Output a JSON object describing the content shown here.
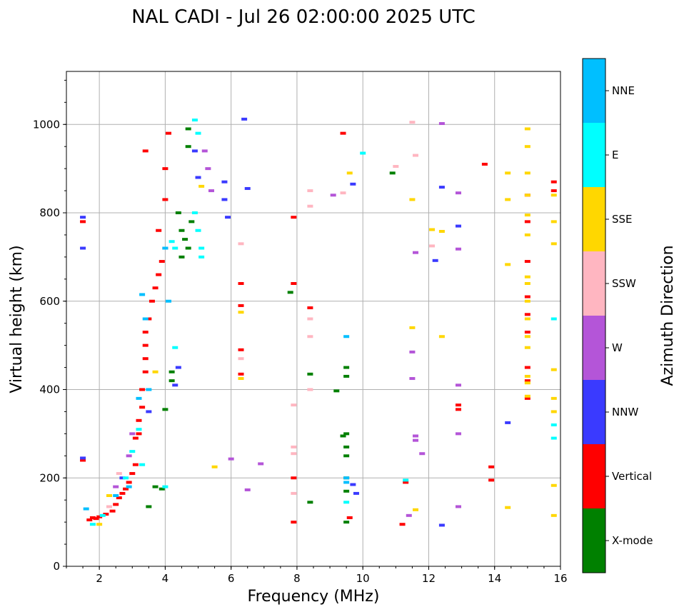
{
  "chart_data": {
    "type": "scatter",
    "title": "NAL CADI - Jul 26 02:00:00 2025 UTC",
    "xlabel": "Frequency (MHz)",
    "ylabel": "Virtual height (km)",
    "xlim": [
      1,
      16
    ],
    "ylim": [
      0,
      1120
    ],
    "xticks": [
      2,
      4,
      6,
      8,
      10,
      12,
      14,
      16
    ],
    "yticks": [
      0,
      200,
      400,
      600,
      800,
      1000
    ],
    "grid": true,
    "colorbar": {
      "title": "Azimuth Direction",
      "categories": [
        {
          "name": "X-mode",
          "color": "#008000"
        },
        {
          "name": "Vertical",
          "color": "#ff0000"
        },
        {
          "name": "NNW",
          "color": "#3a3aff"
        },
        {
          "name": "W",
          "color": "#b455d8"
        },
        {
          "name": "SSW",
          "color": "#ffb6c1"
        },
        {
          "name": "SSE",
          "color": "#ffd700"
        },
        {
          "name": "E",
          "color": "#00ffff"
        },
        {
          "name": "NNE",
          "color": "#00bfff"
        }
      ]
    },
    "series": [
      {
        "name": "Vertical",
        "points": [
          [
            1.7,
            105
          ],
          [
            1.8,
            110
          ],
          [
            1.9,
            108
          ],
          [
            2.0,
            112
          ],
          [
            2.2,
            118
          ],
          [
            2.4,
            125
          ],
          [
            2.5,
            140
          ],
          [
            2.6,
            155
          ],
          [
            2.7,
            165
          ],
          [
            2.8,
            175
          ],
          [
            2.9,
            190
          ],
          [
            3.0,
            210
          ],
          [
            3.1,
            230
          ],
          [
            3.1,
            290
          ],
          [
            3.2,
            300
          ],
          [
            3.2,
            330
          ],
          [
            3.3,
            360
          ],
          [
            3.3,
            400
          ],
          [
            3.4,
            440
          ],
          [
            3.4,
            470
          ],
          [
            3.4,
            500
          ],
          [
            3.4,
            530
          ],
          [
            3.5,
            560
          ],
          [
            3.6,
            600
          ],
          [
            3.7,
            630
          ],
          [
            3.8,
            660
          ],
          [
            3.9,
            690
          ],
          [
            4.0,
            720
          ],
          [
            3.8,
            760
          ],
          [
            4.0,
            830
          ],
          [
            4.0,
            900
          ],
          [
            4.1,
            980
          ],
          [
            1.5,
            240
          ],
          [
            1.5,
            780
          ],
          [
            3.4,
            940
          ],
          [
            6.3,
            640
          ],
          [
            6.3,
            590
          ],
          [
            6.3,
            490
          ],
          [
            6.3,
            435
          ],
          [
            7.9,
            640
          ],
          [
            7.9,
            790
          ],
          [
            7.9,
            200
          ],
          [
            7.9,
            100
          ],
          [
            8.4,
            585
          ],
          [
            9.4,
            980
          ],
          [
            9.6,
            110
          ],
          [
            11.3,
            190
          ],
          [
            11.2,
            95
          ],
          [
            13.7,
            910
          ],
          [
            13.9,
            225
          ],
          [
            13.9,
            195
          ],
          [
            12.9,
            365
          ],
          [
            12.9,
            355
          ],
          [
            15.0,
            840
          ],
          [
            15.0,
            780
          ],
          [
            15.0,
            690
          ],
          [
            15.0,
            610
          ],
          [
            15.0,
            570
          ],
          [
            15.0,
            530
          ],
          [
            15.0,
            450
          ],
          [
            15.0,
            420
          ],
          [
            15.0,
            380
          ],
          [
            15.8,
            870
          ],
          [
            15.8,
            850
          ]
        ]
      },
      {
        "name": "X-mode",
        "points": [
          [
            4.5,
            760
          ],
          [
            4.6,
            740
          ],
          [
            4.7,
            720
          ],
          [
            4.5,
            700
          ],
          [
            4.8,
            780
          ],
          [
            4.4,
            800
          ],
          [
            4.2,
            440
          ],
          [
            4.2,
            420
          ],
          [
            4.0,
            355
          ],
          [
            3.7,
            180
          ],
          [
            3.9,
            175
          ],
          [
            3.5,
            135
          ],
          [
            4.7,
            990
          ],
          [
            4.7,
            950
          ],
          [
            9.5,
            450
          ],
          [
            9.5,
            430
          ],
          [
            9.5,
            300
          ],
          [
            9.5,
            270
          ],
          [
            9.5,
            250
          ],
          [
            9.5,
            200
          ],
          [
            9.5,
            170
          ],
          [
            9.5,
            100
          ],
          [
            9.4,
            295
          ],
          [
            8.4,
            435
          ],
          [
            8.4,
            145
          ],
          [
            9.2,
            397
          ],
          [
            7.8,
            620
          ],
          [
            10.9,
            890
          ]
        ]
      },
      {
        "name": "NNW",
        "points": [
          [
            1.5,
            790
          ],
          [
            1.5,
            720
          ],
          [
            1.5,
            245
          ],
          [
            6.4,
            1012
          ],
          [
            6.5,
            855
          ],
          [
            5.8,
            870
          ],
          [
            5.8,
            830
          ],
          [
            5.9,
            790
          ],
          [
            5.0,
            880
          ],
          [
            4.9,
            940
          ],
          [
            9.7,
            865
          ],
          [
            9.7,
            185
          ],
          [
            9.8,
            165
          ],
          [
            12.4,
            858
          ],
          [
            12.2,
            692
          ],
          [
            12.9,
            770
          ],
          [
            12.4,
            93
          ],
          [
            14.4,
            325
          ],
          [
            4.3,
            410
          ],
          [
            4.4,
            450
          ],
          [
            3.5,
            350
          ],
          [
            2.7,
            200
          ]
        ]
      },
      {
        "name": "W",
        "points": [
          [
            5.2,
            940
          ],
          [
            5.3,
            900
          ],
          [
            5.4,
            850
          ],
          [
            12.4,
            1002
          ],
          [
            12.9,
            845
          ],
          [
            12.9,
            718
          ],
          [
            12.9,
            410
          ],
          [
            12.9,
            300
          ],
          [
            12.9,
            135
          ],
          [
            11.6,
            710
          ],
          [
            11.5,
            485
          ],
          [
            11.5,
            425
          ],
          [
            11.6,
            295
          ],
          [
            11.6,
            285
          ],
          [
            11.8,
            255
          ],
          [
            11.4,
            115
          ],
          [
            9.1,
            840
          ],
          [
            6.5,
            173
          ],
          [
            6.0,
            243
          ],
          [
            6.9,
            232
          ],
          [
            3.0,
            300
          ],
          [
            2.9,
            250
          ],
          [
            2.5,
            180
          ]
        ]
      },
      {
        "name": "SSW",
        "points": [
          [
            6.3,
            730
          ],
          [
            6.3,
            470
          ],
          [
            8.4,
            850
          ],
          [
            8.4,
            815
          ],
          [
            8.4,
            560
          ],
          [
            8.4,
            520
          ],
          [
            8.4,
            400
          ],
          [
            7.9,
            365
          ],
          [
            7.9,
            270
          ],
          [
            7.9,
            255
          ],
          [
            7.9,
            165
          ],
          [
            11.0,
            905
          ],
          [
            11.6,
            930
          ],
          [
            12.1,
            725
          ],
          [
            11.5,
            1005
          ],
          [
            9.4,
            845
          ],
          [
            2.6,
            210
          ],
          [
            2.3,
            135
          ]
        ]
      },
      {
        "name": "SSE",
        "points": [
          [
            15.0,
            990
          ],
          [
            15.0,
            950
          ],
          [
            15.0,
            890
          ],
          [
            15.0,
            840
          ],
          [
            15.0,
            795
          ],
          [
            15.0,
            750
          ],
          [
            15.0,
            655
          ],
          [
            15.0,
            640
          ],
          [
            15.0,
            600
          ],
          [
            15.0,
            560
          ],
          [
            15.0,
            520
          ],
          [
            15.0,
            495
          ],
          [
            15.0,
            430
          ],
          [
            15.0,
            415
          ],
          [
            15.0,
            385
          ],
          [
            15.8,
            840
          ],
          [
            15.8,
            780
          ],
          [
            15.8,
            730
          ],
          [
            15.8,
            445
          ],
          [
            15.8,
            380
          ],
          [
            15.8,
            350
          ],
          [
            15.8,
            183
          ],
          [
            15.8,
            115
          ],
          [
            14.4,
            890
          ],
          [
            14.4,
            830
          ],
          [
            14.4,
            683
          ],
          [
            14.4,
            133
          ],
          [
            12.1,
            762
          ],
          [
            12.4,
            758
          ],
          [
            12.4,
            520
          ],
          [
            11.5,
            540
          ],
          [
            11.5,
            830
          ],
          [
            11.6,
            128
          ],
          [
            9.6,
            890
          ],
          [
            6.3,
            575
          ],
          [
            6.3,
            425
          ],
          [
            5.5,
            225
          ],
          [
            5.1,
            860
          ],
          [
            3.7,
            440
          ],
          [
            2.3,
            160
          ],
          [
            2.0,
            95
          ]
        ]
      },
      {
        "name": "E",
        "points": [
          [
            5.0,
            760
          ],
          [
            5.1,
            720
          ],
          [
            5.1,
            700
          ],
          [
            4.9,
            800
          ],
          [
            4.3,
            720
          ],
          [
            4.2,
            735
          ],
          [
            4.3,
            495
          ],
          [
            4.0,
            180
          ],
          [
            3.3,
            230
          ],
          [
            3.2,
            310
          ],
          [
            3.0,
            260
          ],
          [
            2.8,
            200
          ],
          [
            2.1,
            115
          ],
          [
            1.8,
            95
          ],
          [
            10.0,
            935
          ],
          [
            15.8,
            560
          ],
          [
            15.8,
            320
          ],
          [
            15.8,
            290
          ],
          [
            9.5,
            145
          ],
          [
            11.3,
            195
          ],
          [
            4.9,
            1010
          ],
          [
            5.0,
            980
          ]
        ]
      },
      {
        "name": "NNE",
        "points": [
          [
            9.5,
            520
          ],
          [
            9.5,
            200
          ],
          [
            9.5,
            190
          ],
          [
            3.4,
            560
          ],
          [
            3.3,
            615
          ],
          [
            3.5,
            400
          ],
          [
            3.2,
            380
          ],
          [
            2.9,
            180
          ],
          [
            2.5,
            160
          ],
          [
            1.6,
            130
          ],
          [
            4.1,
            600
          ],
          [
            4.0,
            720
          ]
        ]
      }
    ]
  }
}
